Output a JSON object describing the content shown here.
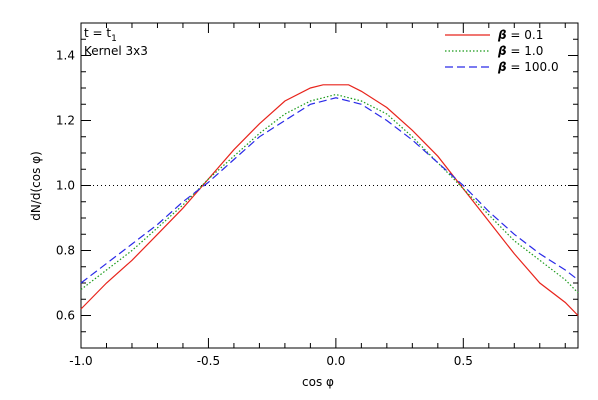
{
  "chart_data": {
    "type": "line",
    "xlabel": "cos φ",
    "ylabel": "dN/d(cos φ)",
    "xlim": [
      -1.0,
      0.95
    ],
    "ylim": [
      0.5,
      1.5
    ],
    "x_ticks": [
      "-1.0",
      "-0.5",
      "0.0",
      "0.5"
    ],
    "x_tick_values": [
      -1.0,
      -0.5,
      0.0,
      0.5
    ],
    "y_ticks": [
      "0.6",
      "0.8",
      "1.0",
      "1.2",
      "1.4"
    ],
    "y_tick_values": [
      0.6,
      0.8,
      1.0,
      1.2,
      1.4
    ],
    "annotations": [
      {
        "main": "t = t",
        "sub": "1"
      },
      {
        "main": "Kernel 3x3",
        "sub": ""
      }
    ],
    "reference_line": {
      "y": 1.0,
      "style": "dotted",
      "color": "#000000"
    },
    "legend_position": "top-right",
    "series": [
      {
        "name": "β = 0.1",
        "symbol": "β",
        "value_text": "= 0.1",
        "color": "#e8241c",
        "style": "solid",
        "x": [
          -1.0,
          -0.9,
          -0.8,
          -0.7,
          -0.6,
          -0.5,
          -0.4,
          -0.3,
          -0.2,
          -0.1,
          -0.05,
          0.0,
          0.05,
          0.1,
          0.2,
          0.3,
          0.4,
          0.5,
          0.6,
          0.7,
          0.8,
          0.9,
          0.95
        ],
        "y": [
          0.62,
          0.7,
          0.77,
          0.85,
          0.93,
          1.02,
          1.11,
          1.19,
          1.26,
          1.3,
          1.31,
          1.31,
          1.31,
          1.29,
          1.24,
          1.17,
          1.09,
          0.99,
          0.89,
          0.79,
          0.7,
          0.64,
          0.6
        ]
      },
      {
        "name": "β = 1.0",
        "symbol": "β",
        "value_text": "= 1.0",
        "color": "#1a9a1a",
        "style": "dotted",
        "x": [
          -1.0,
          -0.9,
          -0.8,
          -0.7,
          -0.6,
          -0.5,
          -0.4,
          -0.3,
          -0.2,
          -0.1,
          0.0,
          0.1,
          0.2,
          0.3,
          0.4,
          0.5,
          0.6,
          0.7,
          0.8,
          0.9,
          0.95
        ],
        "y": [
          0.68,
          0.74,
          0.8,
          0.87,
          0.94,
          1.02,
          1.09,
          1.16,
          1.22,
          1.26,
          1.28,
          1.26,
          1.22,
          1.15,
          1.07,
          0.99,
          0.91,
          0.83,
          0.77,
          0.71,
          0.67
        ]
      },
      {
        "name": "β = 100.0",
        "symbol": "β",
        "value_text": "= 100.0",
        "color": "#2a2ae8",
        "style": "dashed",
        "x": [
          -1.0,
          -0.9,
          -0.8,
          -0.7,
          -0.6,
          -0.5,
          -0.4,
          -0.3,
          -0.2,
          -0.1,
          0.0,
          0.1,
          0.2,
          0.3,
          0.4,
          0.5,
          0.6,
          0.7,
          0.8,
          0.9,
          0.95
        ],
        "y": [
          0.7,
          0.76,
          0.82,
          0.88,
          0.95,
          1.01,
          1.08,
          1.15,
          1.2,
          1.25,
          1.27,
          1.25,
          1.2,
          1.14,
          1.07,
          1.0,
          0.92,
          0.85,
          0.79,
          0.74,
          0.71
        ]
      }
    ]
  }
}
